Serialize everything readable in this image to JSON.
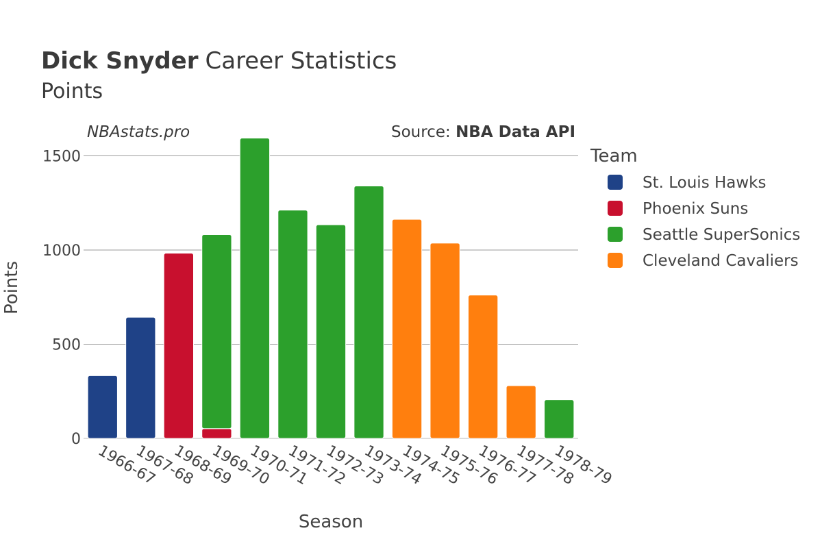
{
  "header": {
    "title_bold": "Dick Snyder",
    "title_rest": "Career Statistics",
    "subtitle": "Points",
    "credit": "NBAstats.pro",
    "source_prefix": "Source: ",
    "source_name": "NBA Data API"
  },
  "legend": {
    "title": "Team",
    "items": [
      {
        "label": "St. Louis Hawks",
        "color": "#1f4287"
      },
      {
        "label": "Phoenix Suns",
        "color": "#c8102e"
      },
      {
        "label": "Seattle SuperSonics",
        "color": "#2ca02c"
      },
      {
        "label": "Cleveland Cavaliers",
        "color": "#ff7f0e"
      }
    ]
  },
  "chart_data": {
    "type": "bar",
    "stacked": true,
    "xlabel": "Season",
    "ylabel": "Points",
    "ylim": [
      0,
      1600
    ],
    "yticks": [
      0,
      500,
      1000,
      1500
    ],
    "grid": true,
    "legend_position": "right",
    "categories": [
      "1966-67",
      "1967-68",
      "1968-69",
      "1969-70",
      "1970-71",
      "1971-72",
      "1972-73",
      "1973-74",
      "1974-75",
      "1975-76",
      "1976-77",
      "1977-78",
      "1978-79"
    ],
    "series": [
      {
        "name": "St. Louis Hawks",
        "color": "#1f4287",
        "values": [
          333,
          643,
          0,
          0,
          0,
          0,
          0,
          0,
          0,
          0,
          0,
          0,
          0
        ]
      },
      {
        "name": "Phoenix Suns",
        "color": "#c8102e",
        "values": [
          0,
          0,
          983,
          52,
          0,
          0,
          0,
          0,
          0,
          0,
          0,
          0,
          0
        ]
      },
      {
        "name": "Seattle SuperSonics",
        "color": "#2ca02c",
        "values": [
          0,
          0,
          0,
          1030,
          1594,
          1212,
          1134,
          1340,
          0,
          0,
          0,
          0,
          205
        ]
      },
      {
        "name": "Cleveland Cavaliers",
        "color": "#ff7f0e",
        "values": [
          0,
          0,
          0,
          0,
          0,
          0,
          0,
          0,
          1163,
          1037,
          761,
          280,
          0
        ]
      }
    ]
  }
}
